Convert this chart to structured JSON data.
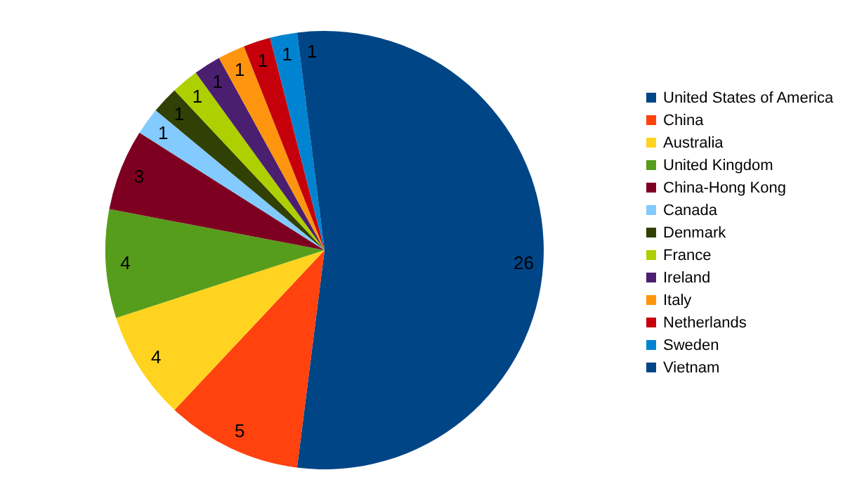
{
  "chart_data": {
    "type": "pie",
    "categories": [
      "United States of America",
      "China",
      "Australia",
      "United Kingdom",
      "China-Hong Kong",
      "Canada",
      "Denmark",
      "France",
      "Ireland",
      "Italy",
      "Netherlands",
      "Sweden",
      "Vietnam"
    ],
    "values": [
      26,
      5,
      4,
      4,
      3,
      1,
      1,
      1,
      1,
      1,
      1,
      1,
      1
    ],
    "colors": [
      "#004586",
      "#ff420e",
      "#ffd320",
      "#579d1c",
      "#7e0021",
      "#83caff",
      "#314004",
      "#aecf00",
      "#4b1f6f",
      "#ff950e",
      "#c5000b",
      "#0084d1",
      "#004586"
    ],
    "data_labels": true,
    "legend": "right"
  }
}
